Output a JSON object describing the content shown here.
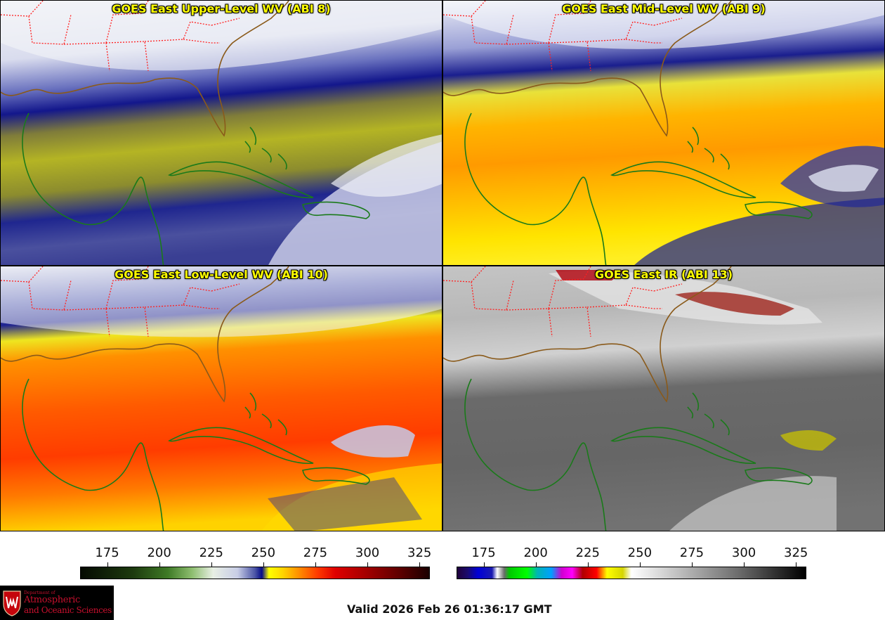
{
  "panels": [
    {
      "id": "p1",
      "title": "GOES East Upper-Level WV (ABI 8)",
      "palette": "wv_upper"
    },
    {
      "id": "p2",
      "title": "GOES East Mid-Level WV (ABI 9)",
      "palette": "wv_mid"
    },
    {
      "id": "p3",
      "title": "GOES East Low-Level WV (ABI 10)",
      "palette": "wv_low"
    },
    {
      "id": "p4",
      "title": "GOES East IR (ABI 13)",
      "palette": "ir"
    }
  ],
  "colorbars": {
    "wv": {
      "ticks": [
        "175",
        "200",
        "225",
        "250",
        "275",
        "300",
        "325"
      ],
      "range": [
        162,
        330
      ]
    },
    "ir": {
      "ticks": [
        "175",
        "200",
        "225",
        "250",
        "275",
        "300",
        "325"
      ],
      "range": [
        162,
        330
      ]
    }
  },
  "map_colors": {
    "state_borders": "#ff2020",
    "coastlines": "#1a7a1a",
    "us_coast": "#8a5a1a"
  },
  "logo": {
    "line1": "Department of",
    "line2": "Atmospheric",
    "line3": "and Oceanic Sciences"
  },
  "valid_time": "Valid 2026 Feb 26 01:36:17 GMT"
}
